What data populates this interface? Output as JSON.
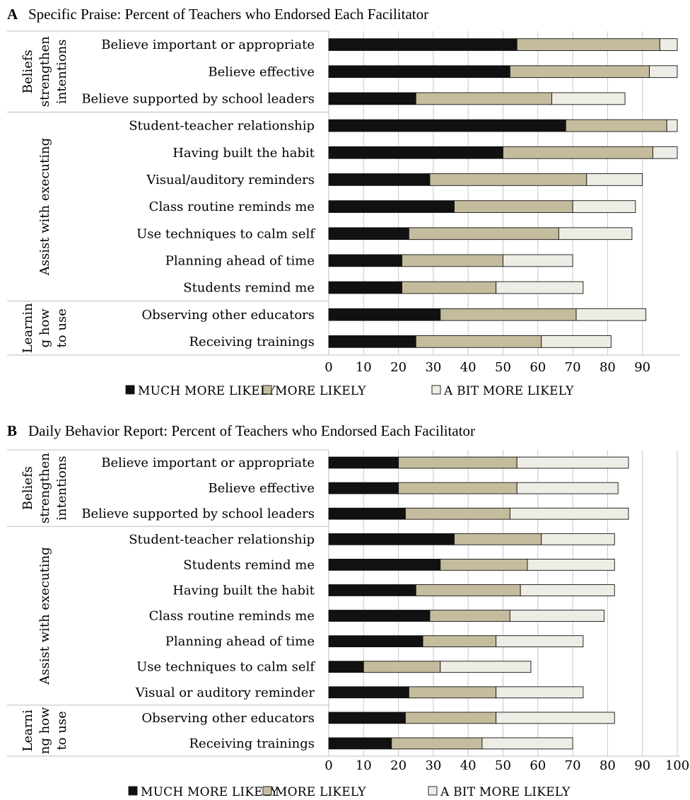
{
  "colors": {
    "much_more_likely": "#111111",
    "more_likely": "#c4bc9d",
    "a_bit_more_likely": "#eeede5",
    "gridline": "#c8c8c8",
    "bar_outline": "#111111"
  },
  "chart_data": [
    {
      "type": "bar",
      "orientation": "horizontal",
      "stacked": true,
      "panel_label": "A",
      "title": "Specific Praise: Percent of Teachers who Endorsed Each Facilitator",
      "xlim": [
        0,
        100
      ],
      "x_ticks": [
        "0",
        "10",
        "20",
        "30",
        "40",
        "50",
        "60",
        "70",
        "80",
        "90"
      ],
      "grid": "vertical",
      "legend_position": "bottom",
      "groups": [
        {
          "label_lines": [
            "Beliefs",
            "strengthen",
            "intentions"
          ],
          "size": 3
        },
        {
          "label_lines": [
            "Assist with executing"
          ],
          "size": 7
        },
        {
          "label_lines": [
            "Learnin",
            "g how",
            "to use"
          ],
          "size": 2
        }
      ],
      "categories": [
        "Believe important or appropriate",
        "Believe effective",
        "Believe supported by school leaders",
        "Student-teacher relationship",
        "Having built the habit",
        "Visual/auditory reminders",
        "Class routine reminds me",
        "Use techniques to calm self",
        "Planning ahead of time",
        "Students remind me",
        "Observing other educators",
        "Receiving trainings"
      ],
      "series": [
        {
          "name": "MUCH MORE LIKELY",
          "values": [
            54,
            52,
            25,
            68,
            50,
            29,
            36,
            23,
            21,
            21,
            32,
            25
          ]
        },
        {
          "name": "MORE LIKELY",
          "values": [
            41,
            40,
            39,
            29,
            43,
            45,
            34,
            43,
            29,
            27,
            39,
            36
          ]
        },
        {
          "name": "A BIT MORE LIKELY",
          "values": [
            5,
            8,
            21,
            3,
            7,
            16,
            18,
            21,
            20,
            25,
            20,
            20
          ]
        }
      ]
    },
    {
      "type": "bar",
      "orientation": "horizontal",
      "stacked": true,
      "panel_label": "B",
      "title": "Daily Behavior Report: Percent of Teachers who Endorsed Each Facilitator",
      "xlim": [
        0,
        100
      ],
      "x_ticks": [
        "0",
        "10",
        "20",
        "30",
        "40",
        "50",
        "60",
        "70",
        "80",
        "90",
        "100"
      ],
      "grid": "vertical",
      "legend_position": "bottom",
      "groups": [
        {
          "label_lines": [
            "Beliefs",
            "strengthen",
            "intentions"
          ],
          "size": 3
        },
        {
          "label_lines": [
            "Assist with executing"
          ],
          "size": 7
        },
        {
          "label_lines": [
            "Learni",
            "ng how",
            "to use"
          ],
          "size": 2
        }
      ],
      "categories": [
        "Believe important or appropriate",
        "Believe effective",
        "Believe supported by school leaders",
        "Student-teacher relationship",
        "Students remind me",
        "Having built the habit",
        "Class routine reminds me",
        "Planning ahead of time",
        "Use techniques to calm self",
        "Visual or auditory reminder",
        "Observing other educators",
        "Receiving trainings"
      ],
      "series": [
        {
          "name": "MUCH MORE LIKELY",
          "values": [
            20,
            20,
            22,
            36,
            32,
            25,
            29,
            27,
            10,
            23,
            22,
            18
          ]
        },
        {
          "name": "MORE LIKELY",
          "values": [
            34,
            34,
            30,
            25,
            25,
            30,
            23,
            21,
            22,
            25,
            26,
            26
          ]
        },
        {
          "name": "A BIT MORE LIKELY",
          "values": [
            32,
            29,
            34,
            21,
            25,
            27,
            27,
            25,
            26,
            25,
            34,
            26
          ]
        }
      ]
    }
  ]
}
